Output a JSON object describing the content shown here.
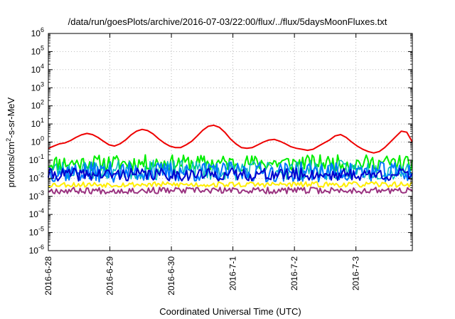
{
  "chart_data": {
    "type": "line",
    "title": "/data/run/goesPlots/archive/2016-07-03/22:00/flux/../flux/5daysMoonFluxes.txt",
    "xlabel": "Coordinated Universal Time (UTC)",
    "ylabel": {
      "main": "protons/cm",
      "sup": "2",
      "rest": "-s-sr-MeV"
    },
    "yscale": "log",
    "ylim_exp": [
      -6,
      6
    ],
    "ytick_exponents": [
      -6,
      -5,
      -4,
      -3,
      -2,
      -1,
      0,
      1,
      2,
      3,
      4,
      5,
      6
    ],
    "xlim": [
      "2016-06-28 00:00",
      "2016-07-03 22:00"
    ],
    "xtick_labels": [
      "2016-6-28",
      "2016-6-29",
      "2016-6-30",
      "2016-7-1",
      "2016-7-2",
      "2016-7-3"
    ],
    "grid": true,
    "legend": "none",
    "series": [
      {
        "color": "#ee0000",
        "width": 2,
        "values": [
          0.45,
          0.6,
          0.8,
          0.9,
          1.2,
          1.8,
          2.5,
          3.0,
          2.6,
          1.8,
          1.1,
          0.7,
          0.6,
          0.8,
          1.3,
          2.5,
          4.0,
          5.0,
          4.3,
          2.8,
          1.5,
          0.9,
          0.6,
          0.5,
          0.5,
          0.7,
          1.1,
          2.2,
          4.5,
          7.5,
          8.5,
          6.5,
          3.5,
          1.5,
          0.8,
          0.5,
          0.45,
          0.5,
          0.7,
          1.0,
          1.3,
          1.4,
          1.1,
          0.8,
          0.55,
          0.45,
          0.4,
          0.35,
          0.4,
          0.6,
          0.9,
          1.3,
          2.2,
          2.6,
          1.8,
          1.0,
          0.6,
          0.4,
          0.3,
          0.25,
          0.3,
          0.5,
          1.0,
          2.0,
          4.0,
          3.5,
          1.0
        ]
      },
      {
        "color": "#00ee00",
        "width": 2,
        "base": 0.07,
        "jitter": 0.45,
        "seed": 11
      },
      {
        "color": "#00bbbb",
        "width": 1.5,
        "base": 0.028,
        "jitter": 0.55,
        "seed": 23
      },
      {
        "color": "#0077ff",
        "width": 2,
        "base": 0.022,
        "jitter": 0.55,
        "seed": 37
      },
      {
        "color": "#0000cc",
        "width": 2,
        "base": 0.016,
        "jitter": 0.35,
        "seed": 41
      },
      {
        "color": "#ffee00",
        "width": 2,
        "base": 0.0045,
        "jitter": 0.15,
        "seed": 53
      },
      {
        "color": "#9a3380",
        "width": 2,
        "base": 0.0021,
        "jitter": 0.18,
        "seed": 67
      }
    ]
  }
}
